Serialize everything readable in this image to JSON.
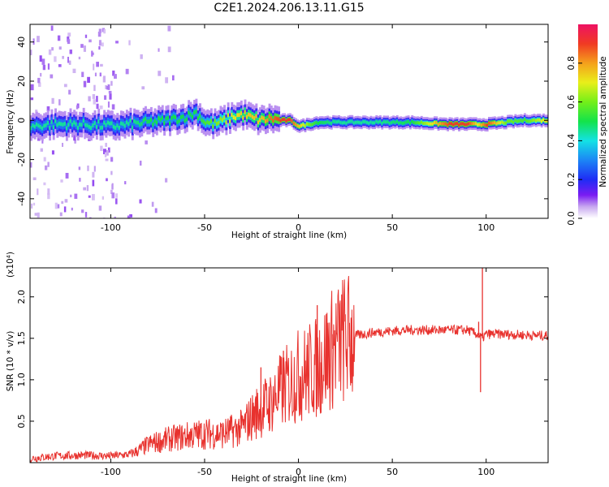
{
  "title": "C2E1.2024.206.13.11.G15",
  "chart_data": [
    {
      "type": "heatmap",
      "xlabel": "Height of straight line (km)",
      "ylabel": "Frequency (Hz)",
      "xlim": [
        -143,
        133
      ],
      "ylim": [
        -50,
        49
      ],
      "xticks": [
        -100,
        -50,
        0,
        50,
        100
      ],
      "yticks": [
        -40,
        -20,
        0,
        20,
        40
      ],
      "colorbar": {
        "label": "Normalized spectral amplitude",
        "range": [
          0.0,
          1.0
        ],
        "ticks": [
          0.0,
          0.2,
          0.4,
          0.6,
          0.8
        ],
        "tick_labels": [
          "0.0",
          "0.2",
          "0.4",
          "0.6",
          "0.8"
        ]
      },
      "ridge": {
        "x": [
          -143,
          -130,
          -115,
          -100,
          -90,
          -80,
          -70,
          -60,
          -55,
          -50,
          -45,
          -40,
          -35,
          -30,
          -25,
          -20,
          -15,
          -10,
          -5,
          0,
          5,
          10,
          20,
          40,
          60,
          80,
          90,
          95,
          100,
          110,
          120,
          133
        ],
        "frequency": [
          -3,
          -2,
          -2,
          -3,
          -2,
          -1,
          0,
          2,
          4,
          -1,
          -2,
          0,
          2,
          3,
          1,
          0,
          1,
          0,
          0,
          -3,
          -2,
          -1,
          -1,
          -1,
          -1,
          -2,
          -2,
          -2,
          -2,
          -1,
          0,
          0
        ],
        "amplitude": [
          0.45,
          0.45,
          0.45,
          0.45,
          0.45,
          0.5,
          0.5,
          0.5,
          0.5,
          0.55,
          0.6,
          0.65,
          0.7,
          0.75,
          0.75,
          0.75,
          0.85,
          0.9,
          0.9,
          0.75,
          0.6,
          0.5,
          0.45,
          0.45,
          0.5,
          0.9,
          0.9,
          0.7,
          0.9,
          0.6,
          0.55,
          0.75
        ]
      }
    },
    {
      "type": "line",
      "xlabel": "Height of straight line (km)",
      "ylabel": "SNR (10 * v/v)",
      "y_multiplier_label": "(x10⁴)",
      "xlim": [
        -143,
        133
      ],
      "ylim": [
        0.0,
        2.35
      ],
      "xticks": [
        -100,
        -50,
        0,
        50,
        100
      ],
      "yticks": [
        0.5,
        1.0,
        1.5,
        2.0
      ],
      "ytick_labels": [
        "0.5",
        "1.0",
        "1.5",
        "2.0"
      ],
      "series": [
        {
          "color": "#e8322e",
          "x": [
            -143,
            -130,
            -115,
            -100,
            -90,
            -85,
            -80,
            -70,
            -60,
            -50,
            -40,
            -30,
            -25,
            -20,
            -15,
            -10,
            -5,
            0,
            5,
            10,
            15,
            20,
            25,
            30,
            40,
            50,
            60,
            70,
            80,
            90,
            95,
            98,
            100,
            110,
            120,
            133
          ],
          "y": [
            0.05,
            0.08,
            0.09,
            0.08,
            0.1,
            0.15,
            0.22,
            0.28,
            0.32,
            0.35,
            0.35,
            0.42,
            0.55,
            0.65,
            0.72,
            0.85,
            0.95,
            1.05,
            1.1,
            1.15,
            1.3,
            1.42,
            1.5,
            1.53,
            1.57,
            1.59,
            1.6,
            1.6,
            1.6,
            1.6,
            1.55,
            1.5,
            1.55,
            1.55,
            1.54,
            1.53
          ],
          "spikes": [
            {
              "x": -20,
              "y": 1.15
            },
            {
              "x": -8,
              "y": 1.35
            },
            {
              "x": 10,
              "y": 1.9
            },
            {
              "x": 12,
              "y": 0.6
            },
            {
              "x": 18,
              "y": 1.55
            },
            {
              "x": 96,
              "y": 1.7
            },
            {
              "x": 97,
              "y": 0.85
            },
            {
              "x": 98,
              "y": 2.35
            }
          ]
        }
      ]
    }
  ]
}
